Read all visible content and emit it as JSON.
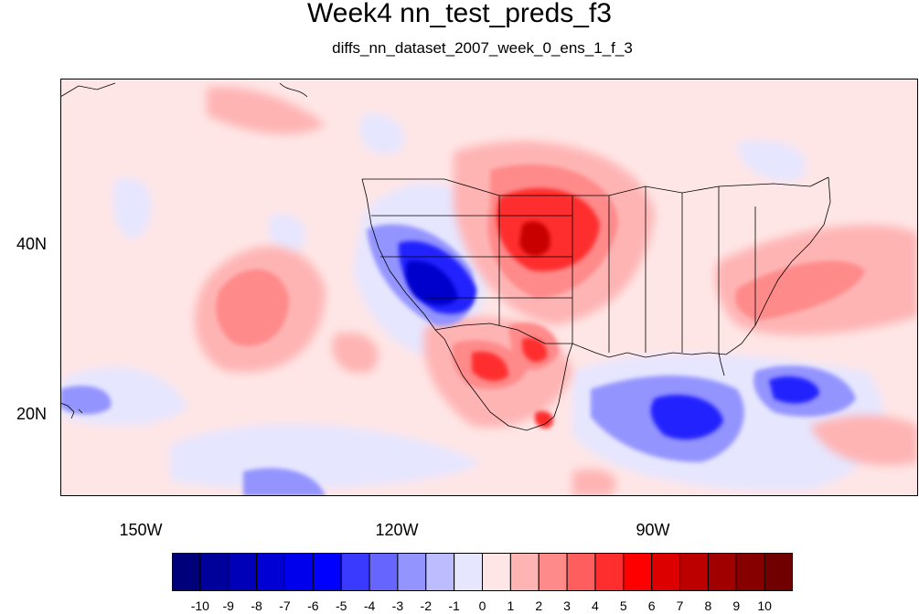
{
  "title": "Week4 nn_test_preds_f3",
  "subtitle": "diffs_nn_dataset_2007_week_0_ens_1_f_3",
  "map": {
    "lon_labels": [
      "150W",
      "120W",
      "90W"
    ],
    "lat_labels": [
      "40N",
      "20N"
    ],
    "background_color": "#ffe6e6"
  },
  "colorbar": {
    "labels": [
      "-10",
      "-9",
      "-8",
      "-7",
      "-6",
      "-5",
      "-4",
      "-3",
      "-2",
      "-1",
      "0",
      "1",
      "2",
      "3",
      "4",
      "5",
      "6",
      "7",
      "8",
      "9",
      "10"
    ],
    "colors": [
      "#00007a",
      "#00009a",
      "#0000b8",
      "#0000d4",
      "#0000ec",
      "#0000ff",
      "#3a3aff",
      "#6666ff",
      "#9494ff",
      "#bcbcff",
      "#e6e6ff",
      "#ffe6e6",
      "#ffb4b4",
      "#ff8a8a",
      "#ff5e5e",
      "#ff2e2e",
      "#ff0000",
      "#dc0000",
      "#bc0000",
      "#a00000",
      "#860000",
      "#700000"
    ]
  }
}
